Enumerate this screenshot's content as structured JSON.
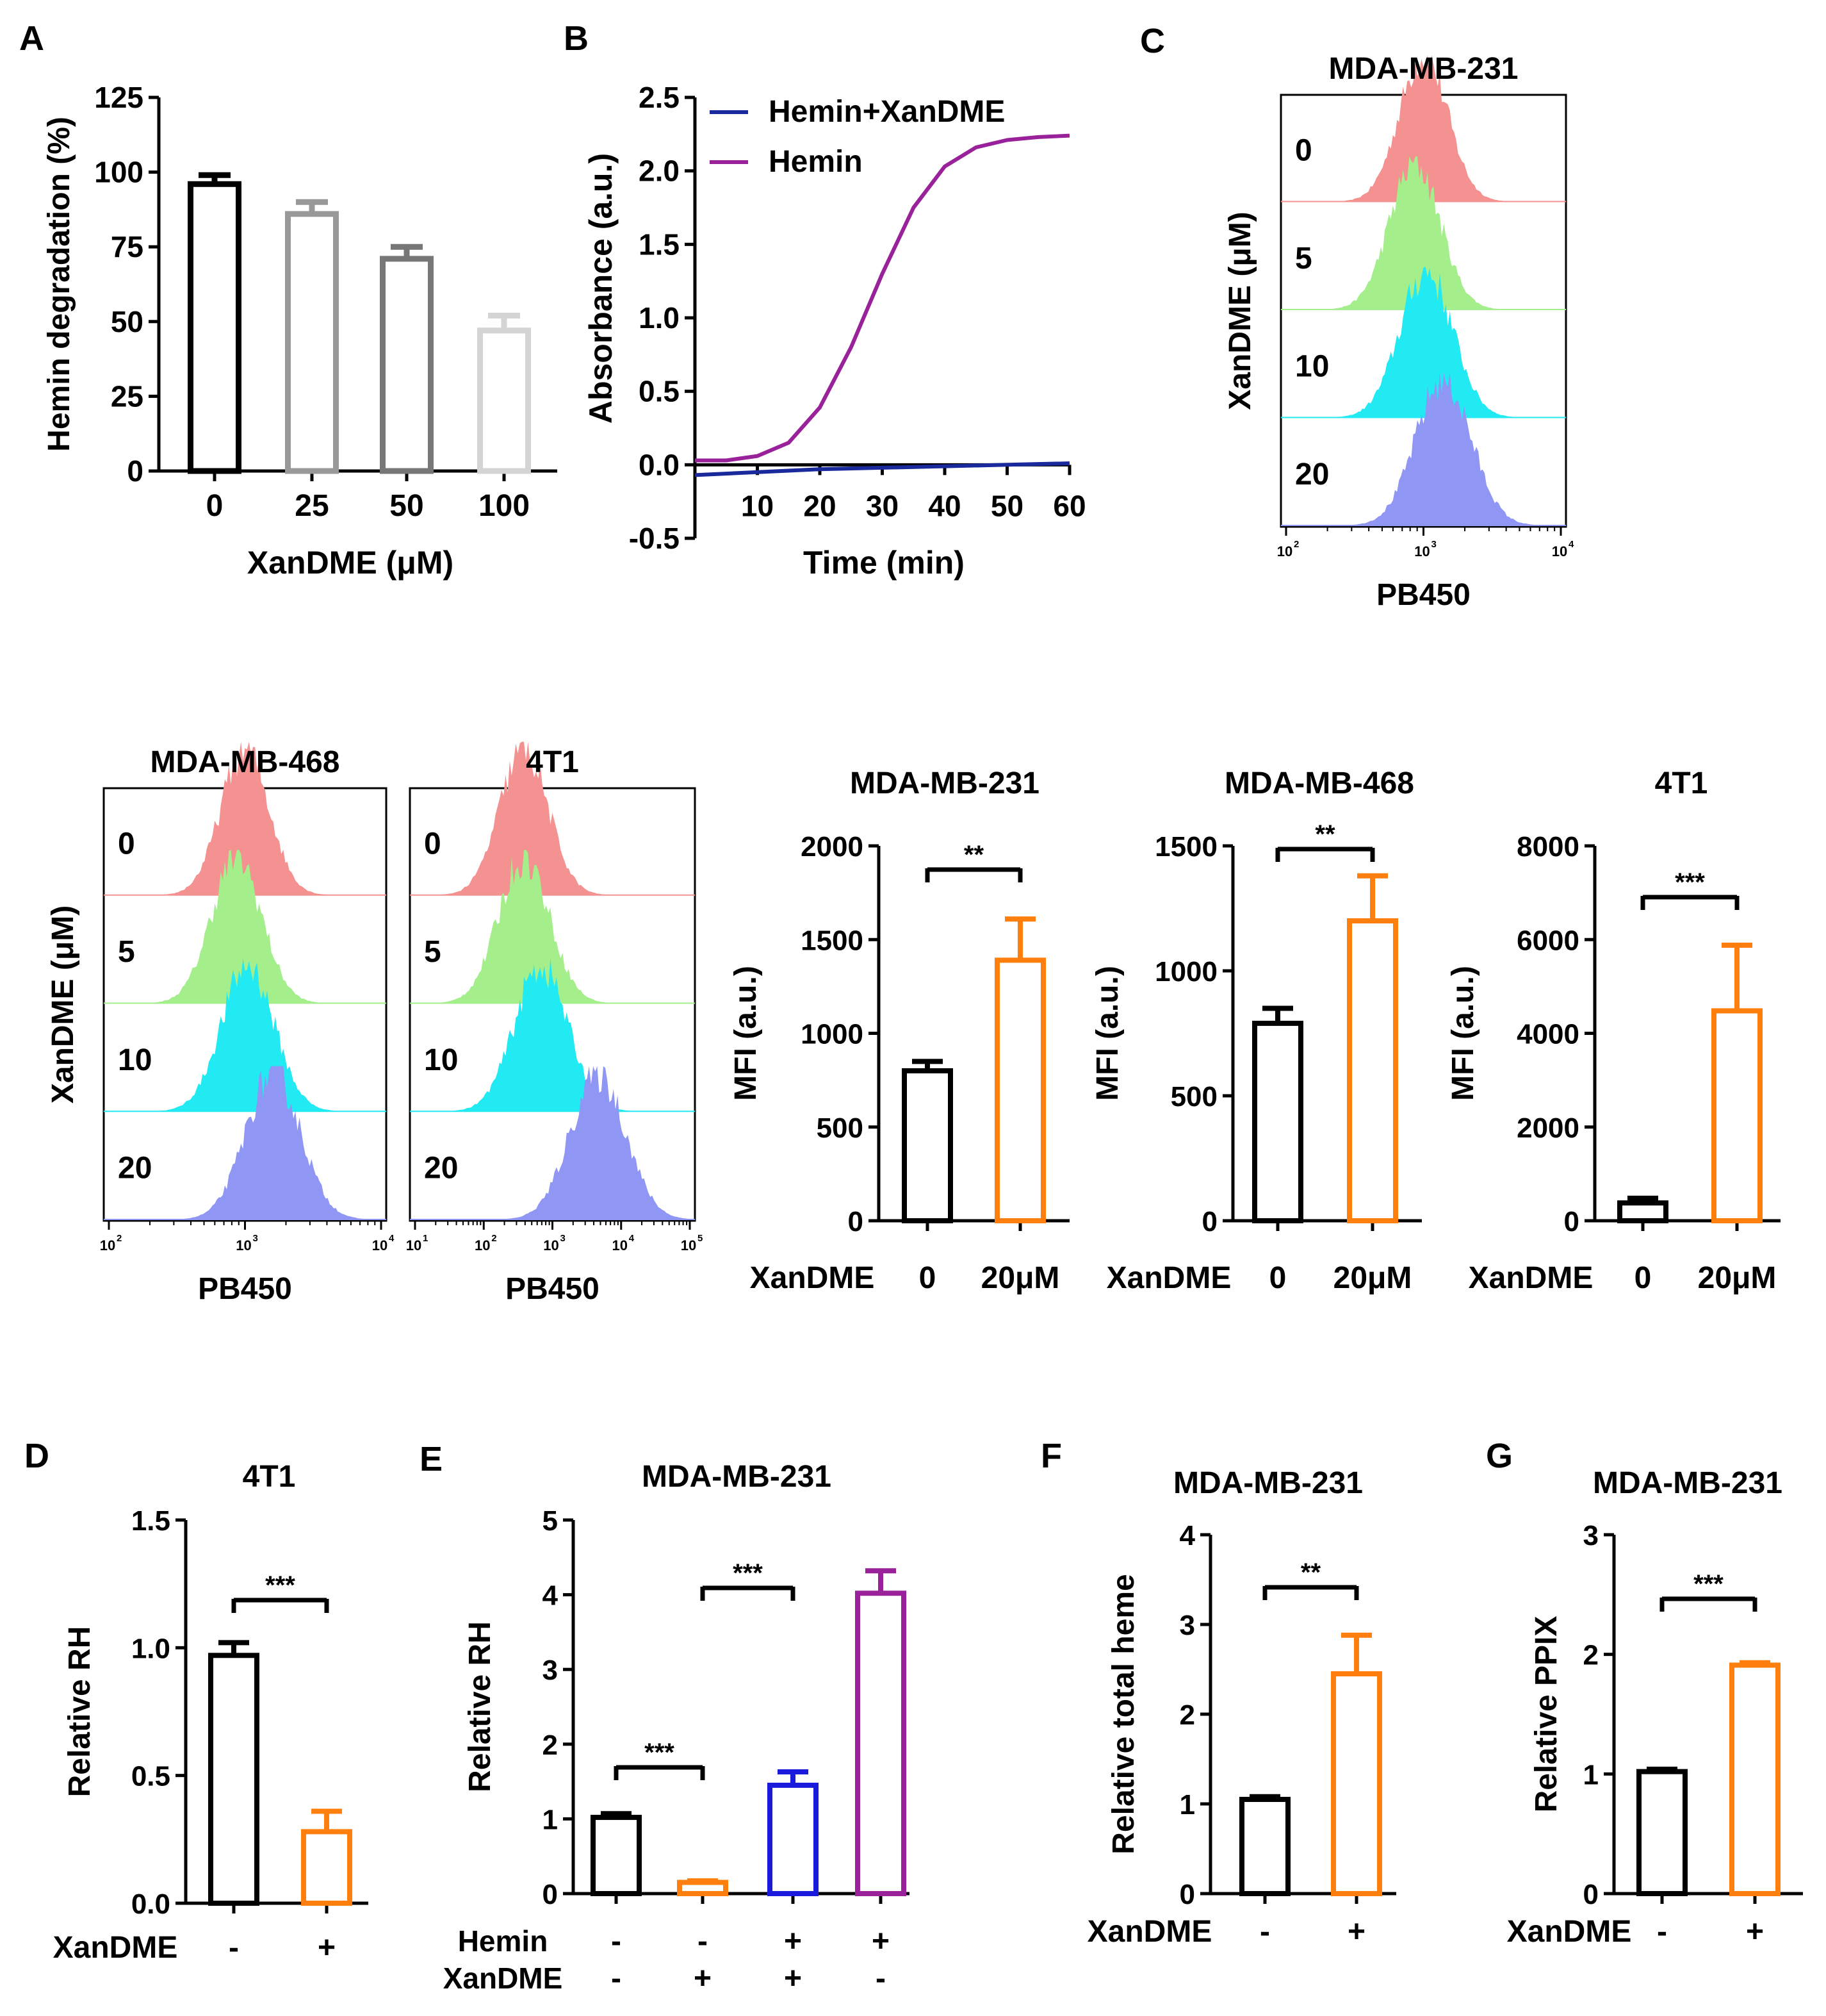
{
  "panels": {
    "A": {
      "letter": "A"
    },
    "B": {
      "letter": "B"
    },
    "C": {
      "letter": "C"
    },
    "D": {
      "letter": "D"
    },
    "E": {
      "letter": "E"
    },
    "F": {
      "letter": "F"
    },
    "G": {
      "letter": "G"
    }
  },
  "colors": {
    "black": "#000000",
    "gray1": "#999999",
    "gray2": "#777777",
    "gray3": "#d4d4d4",
    "orange": "#ff7f0e",
    "blue": "#1a1adc",
    "purple": "#99229a",
    "navy": "#1a2a9c",
    "hist_red": "#f49191",
    "hist_green": "#a4ee8c",
    "hist_cyan": "#22eaf2",
    "hist_blue": "#8f96f4"
  },
  "chart_data": [
    {
      "id": "A",
      "type": "bar",
      "categories": [
        "0",
        "25",
        "50",
        "100"
      ],
      "values": [
        96,
        86,
        71,
        47
      ],
      "errors": [
        3,
        4,
        4,
        5
      ],
      "bar_colors": [
        "black",
        "gray1",
        "gray2",
        "gray3"
      ],
      "title": "",
      "xlabel": "XanDME (μM)",
      "ylabel": "Hemin degradation (%)",
      "ylim": [
        0,
        125
      ],
      "yticks": [
        "0",
        "25",
        "50",
        "75",
        "100",
        "125"
      ]
    },
    {
      "id": "B",
      "type": "line",
      "title": "",
      "xlabel": "Time (min)",
      "ylabel": "Absorbance (a.u.)",
      "xlim": [
        0,
        60
      ],
      "ylim": [
        -0.5,
        2.5
      ],
      "xticks": [
        "10",
        "20",
        "30",
        "40",
        "50",
        "60"
      ],
      "yticks": [
        "-0.5",
        "0.0",
        "0.5",
        "1.0",
        "1.5",
        "2.0",
        "2.5"
      ],
      "series": [
        {
          "name": "Hemin+XanDME",
          "color": "navy",
          "x": [
            0,
            10,
            20,
            30,
            40,
            50,
            60
          ],
          "y": [
            -0.07,
            -0.05,
            -0.03,
            -0.02,
            -0.01,
            0.0,
            0.01
          ]
        },
        {
          "name": "Hemin",
          "color": "purple",
          "x": [
            0,
            5,
            10,
            15,
            20,
            25,
            30,
            35,
            40,
            45,
            50,
            55,
            60
          ],
          "y": [
            0.03,
            0.03,
            0.06,
            0.15,
            0.39,
            0.8,
            1.3,
            1.75,
            2.03,
            2.16,
            2.21,
            2.23,
            2.24
          ]
        }
      ]
    },
    {
      "id": "C-hist",
      "type": "area",
      "title": "MDA-MB-231",
      "xlabel": "PB450",
      "ylabel": "XanDME (μM)",
      "labels": [
        "0",
        "5",
        "10",
        "20"
      ],
      "decade_labels": [
        "10",
        "10",
        "10"
      ],
      "decade_exps": [
        "2",
        "3",
        "4"
      ],
      "peaks": [
        0.5,
        0.47,
        0.51,
        0.57
      ]
    },
    {
      "id": "468-hist",
      "type": "area",
      "title": "MDA-MB-468",
      "xlabel": "PB450",
      "ylabel": "XanDME (μM)",
      "labels": [
        "0",
        "5",
        "10",
        "20"
      ],
      "decade_labels": [
        "10",
        "10",
        "10"
      ],
      "decade_exps": [
        "2",
        "3",
        "4"
      ],
      "peaks": [
        0.5,
        0.47,
        0.51,
        0.6
      ]
    },
    {
      "id": "4T1-hist",
      "type": "area",
      "title": "4T1",
      "xlabel": "PB450",
      "labels": [
        "0",
        "5",
        "10",
        "20"
      ],
      "decade_labels": [
        "10",
        "10",
        "10",
        "10",
        "10"
      ],
      "decade_exps": [
        "1",
        "2",
        "3",
        "4",
        "5"
      ],
      "peaks": [
        0.4,
        0.4,
        0.46,
        0.66
      ]
    },
    {
      "id": "MFI-231",
      "type": "bar",
      "title": "MDA-MB-231",
      "ylabel": "MFI (a.u.)",
      "row_label": "XanDME",
      "categories": [
        "0",
        "20μM"
      ],
      "values": [
        800,
        1390
      ],
      "errors": [
        50,
        220
      ],
      "bar_colors": [
        "black",
        "orange"
      ],
      "ylim": [
        0,
        2000
      ],
      "yticks": [
        "0",
        "500",
        "1000",
        "1500",
        "2000"
      ],
      "sig": "**"
    },
    {
      "id": "MFI-468",
      "type": "bar",
      "title": "MDA-MB-468",
      "ylabel": "MFI (a.u.)",
      "row_label": "XanDME",
      "categories": [
        "0",
        "20μM"
      ],
      "values": [
        790,
        1200
      ],
      "errors": [
        60,
        180
      ],
      "bar_colors": [
        "black",
        "orange"
      ],
      "ylim": [
        0,
        1500
      ],
      "yticks": [
        "0",
        "500",
        "1000",
        "1500"
      ],
      "sig": "**"
    },
    {
      "id": "MFI-4T1",
      "type": "bar",
      "title": "4T1",
      "ylabel": "MFI (a.u.)",
      "row_label": "XanDME",
      "categories": [
        "0",
        "20μM"
      ],
      "values": [
        380,
        4480
      ],
      "errors": [
        100,
        1400
      ],
      "bar_colors": [
        "black",
        "orange"
      ],
      "ylim": [
        0,
        8000
      ],
      "yticks": [
        "0",
        "2000",
        "4000",
        "6000",
        "8000"
      ],
      "sig": "***"
    },
    {
      "id": "D",
      "type": "bar",
      "title": "4T1",
      "ylabel": "Relative RH",
      "row_label": "XanDME",
      "categories": [
        "-",
        "+"
      ],
      "values": [
        0.97,
        0.28
      ],
      "errors": [
        0.05,
        0.08
      ],
      "bar_colors": [
        "black",
        "orange"
      ],
      "ylim": [
        0,
        1.5
      ],
      "yticks": [
        "0.0",
        "0.5",
        "1.0",
        "1.5"
      ],
      "sig": "***"
    },
    {
      "id": "E",
      "type": "bar",
      "title": "MDA-MB-231",
      "ylabel": "Relative RH",
      "row_labels": [
        "Hemin",
        "XanDME"
      ],
      "row_values": [
        [
          "-",
          "-",
          "+",
          "+"
        ],
        [
          "-",
          "+",
          "+",
          "-"
        ]
      ],
      "values": [
        1.02,
        0.15,
        1.45,
        4.02
      ],
      "errors": [
        0.05,
        0.02,
        0.18,
        0.3
      ],
      "bar_colors": [
        "black",
        "orange",
        "blue",
        "purple"
      ],
      "ylim": [
        0,
        5
      ],
      "yticks": [
        "0",
        "1",
        "2",
        "3",
        "4",
        "5"
      ],
      "sigs": [
        "***",
        "***"
      ]
    },
    {
      "id": "F",
      "type": "bar",
      "title": "MDA-MB-231",
      "ylabel": "Relative total heme",
      "row_label": "XanDME",
      "categories": [
        "-",
        "+"
      ],
      "values": [
        1.05,
        2.45
      ],
      "errors": [
        0.03,
        0.43
      ],
      "bar_colors": [
        "black",
        "orange"
      ],
      "ylim": [
        0,
        4
      ],
      "yticks": [
        "0",
        "1",
        "2",
        "3",
        "4"
      ],
      "sig": "**"
    },
    {
      "id": "G",
      "type": "bar",
      "title": "MDA-MB-231",
      "ylabel": "Relative PPIX",
      "row_label": "XanDME",
      "categories": [
        "-",
        "+"
      ],
      "values": [
        1.02,
        1.91
      ],
      "errors": [
        0.02,
        0.02
      ],
      "bar_colors": [
        "black",
        "orange"
      ],
      "ylim": [
        0,
        3
      ],
      "yticks": [
        "0",
        "1",
        "2",
        "3"
      ],
      "sig": "***"
    }
  ]
}
